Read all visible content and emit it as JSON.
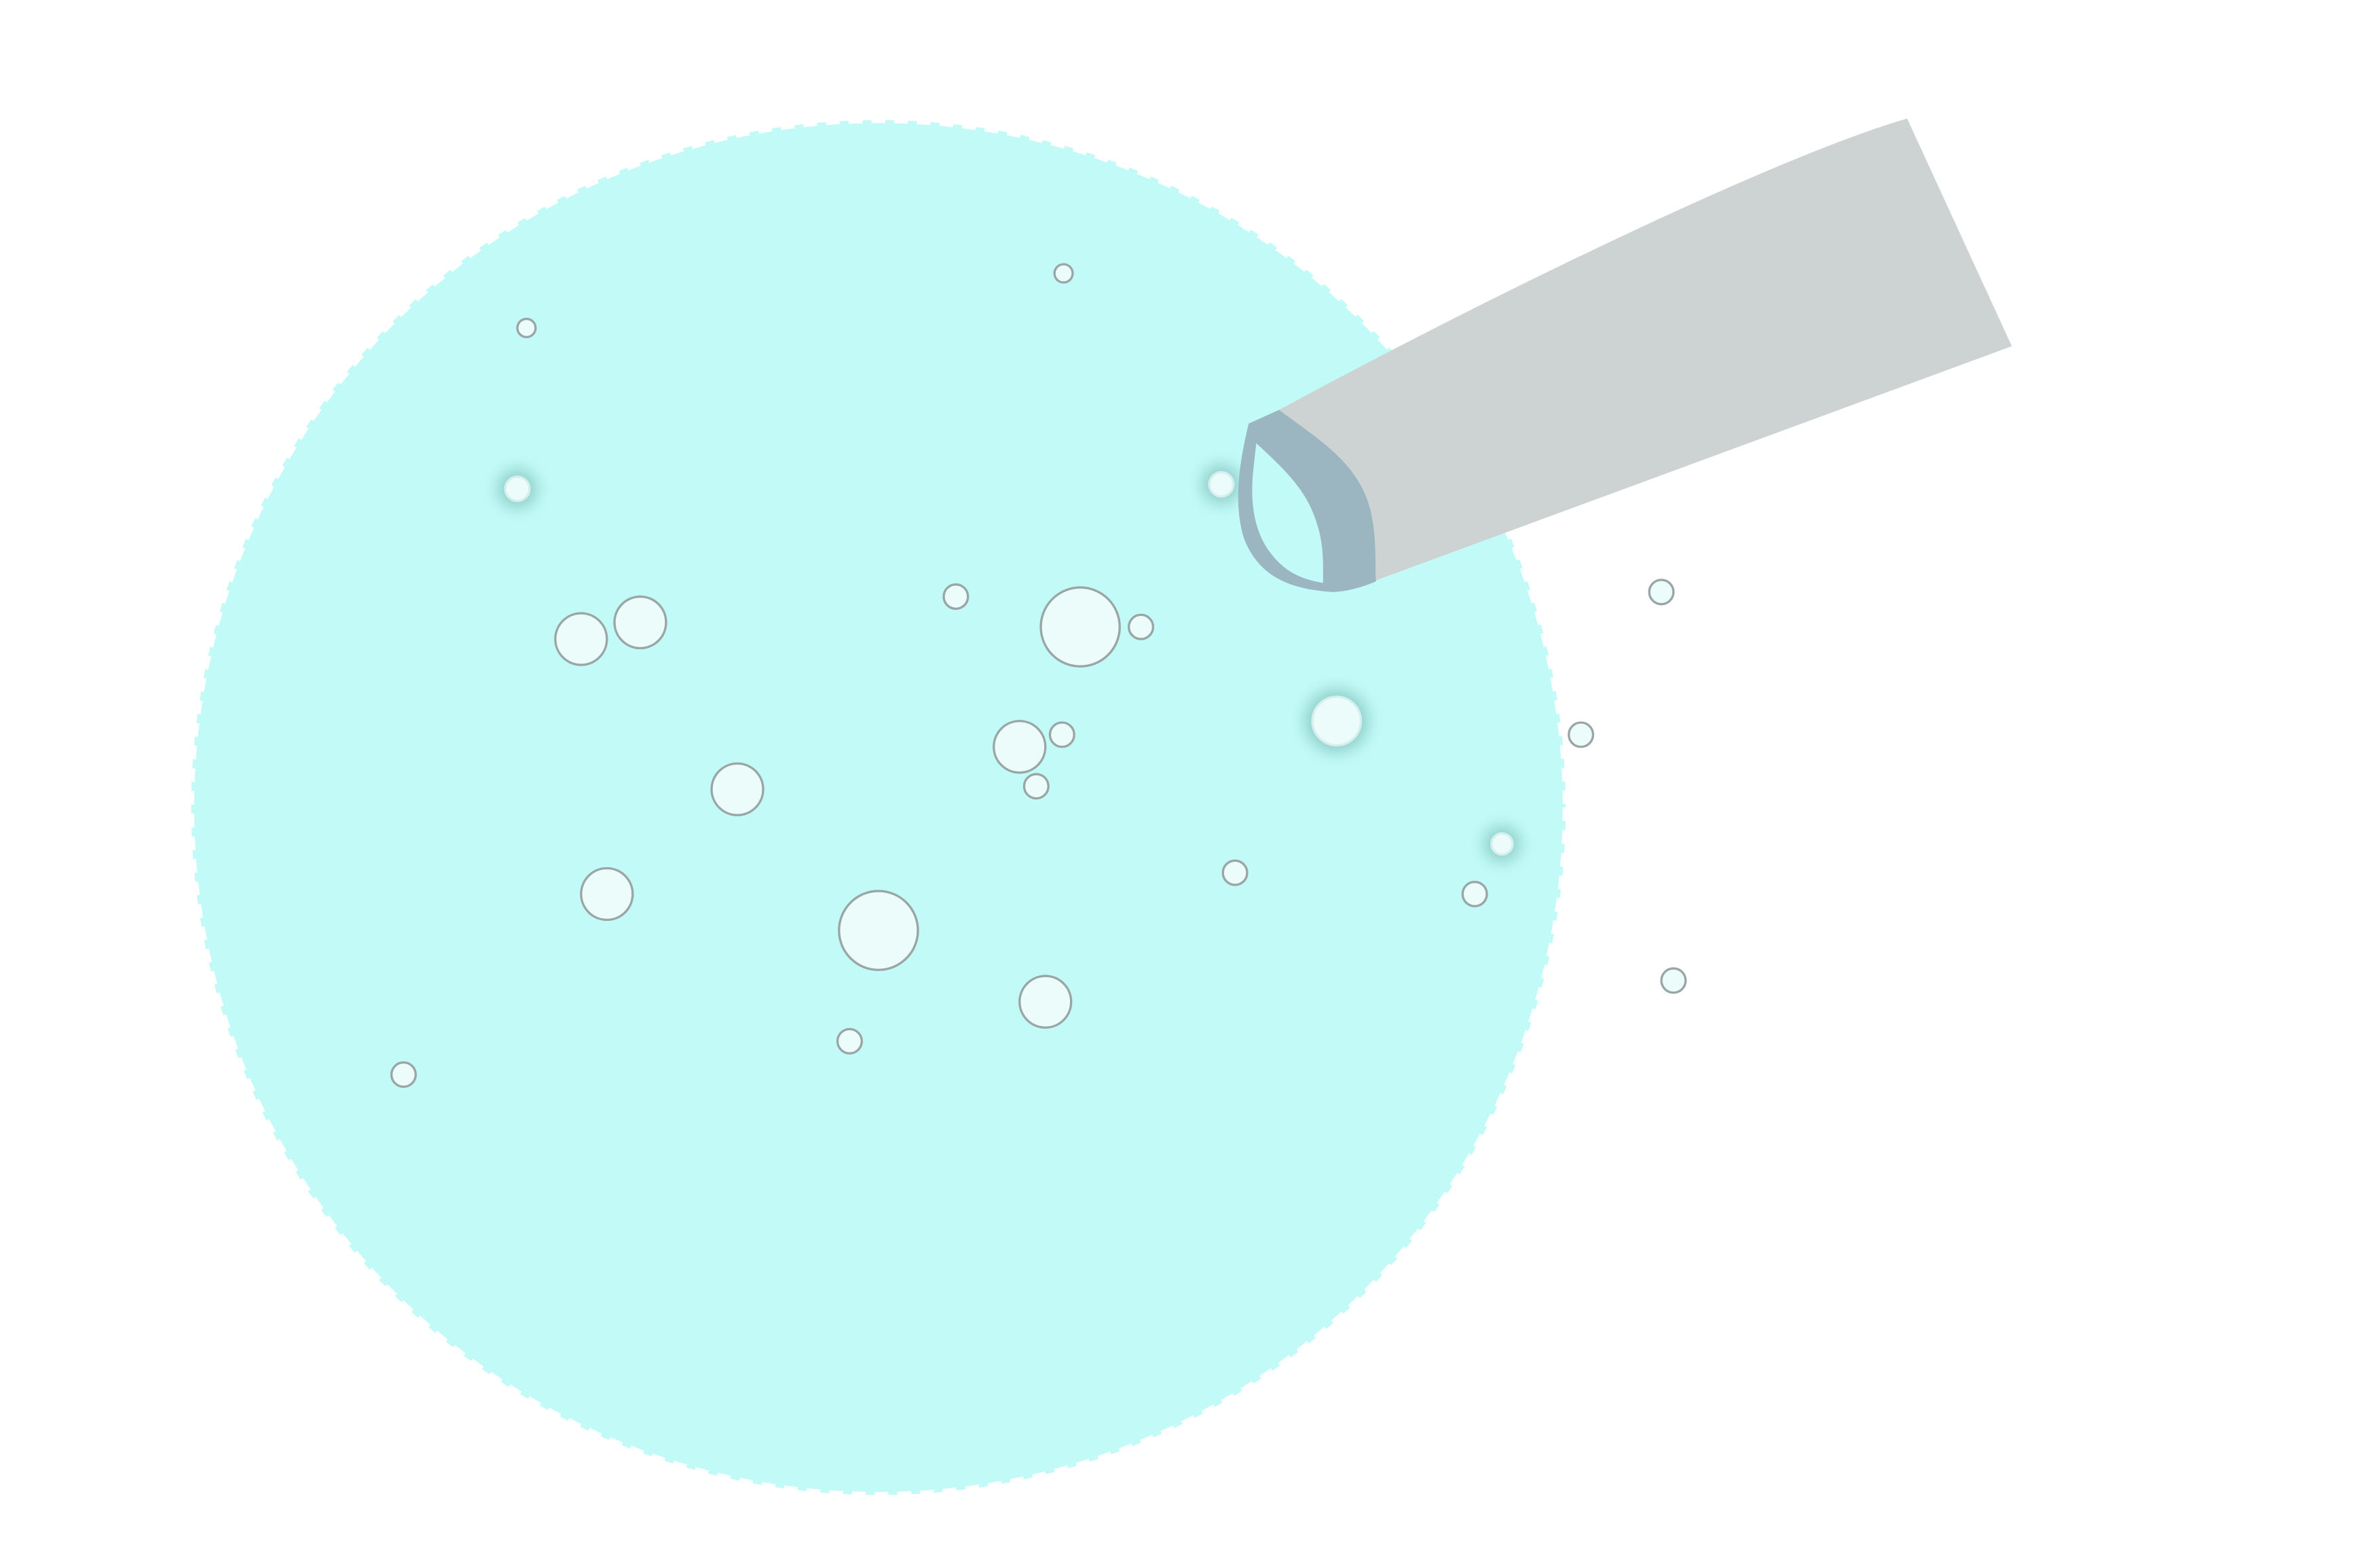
{
  "colors": {
    "background": "#ffffff",
    "disc_fill": "#c2faf7",
    "disc_edge": "#ffffff",
    "bubble_fill": "#ebfcfb",
    "bubble_stroke": "#9aa5a5",
    "glow": "#8fcfcb",
    "pipe_body": "#cdd3d3",
    "pipe_rim": "#9bb6c0",
    "pipe_opening": "#c2faf7"
  },
  "icons": {
    "disc": "water-drop-disc-icon",
    "pipe": "pipe-nozzle-icon",
    "bubble": "bubble-icon",
    "glowing_bubble": "glowing-bubble-icon"
  }
}
